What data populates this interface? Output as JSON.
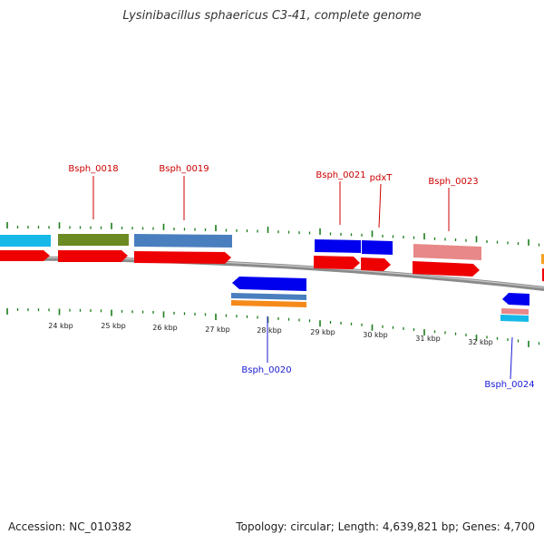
{
  "title": "Lysinibacillus sphaericus C3-41, complete genome",
  "footer": {
    "accession": "Accession: NC_010382",
    "topology": "Topology: circular; Length: 4,639,821 bp; Genes: 4,700"
  },
  "colors": {
    "tick": "#1b7d1b",
    "backbone": "#8a8a8a",
    "forward_label": "#cc0000",
    "reverse_label": "#1a1ad6",
    "tick_label": "#222222"
  },
  "scale": {
    "ticks": [
      {
        "label": "24 kbp"
      },
      {
        "label": "25 kbp"
      },
      {
        "label": "26 kbp"
      },
      {
        "label": "27 kbp"
      },
      {
        "label": "28 kbp"
      },
      {
        "label": "29 kbp"
      },
      {
        "label": "30 kbp"
      },
      {
        "label": "31 kbp"
      },
      {
        "label": "32 kbp"
      }
    ]
  },
  "gene_labels": [
    {
      "text": "Bsph_0018",
      "strand": "forward"
    },
    {
      "text": "Bsph_0019",
      "strand": "forward"
    },
    {
      "text": "Bsph_0020",
      "strand": "reverse"
    },
    {
      "text": "Bsph_0021",
      "strand": "forward"
    },
    {
      "text": "pdxT",
      "strand": "forward"
    },
    {
      "text": "Bsph_0023",
      "strand": "forward"
    },
    {
      "text": "Bsph_0024",
      "strand": "reverse"
    }
  ]
}
